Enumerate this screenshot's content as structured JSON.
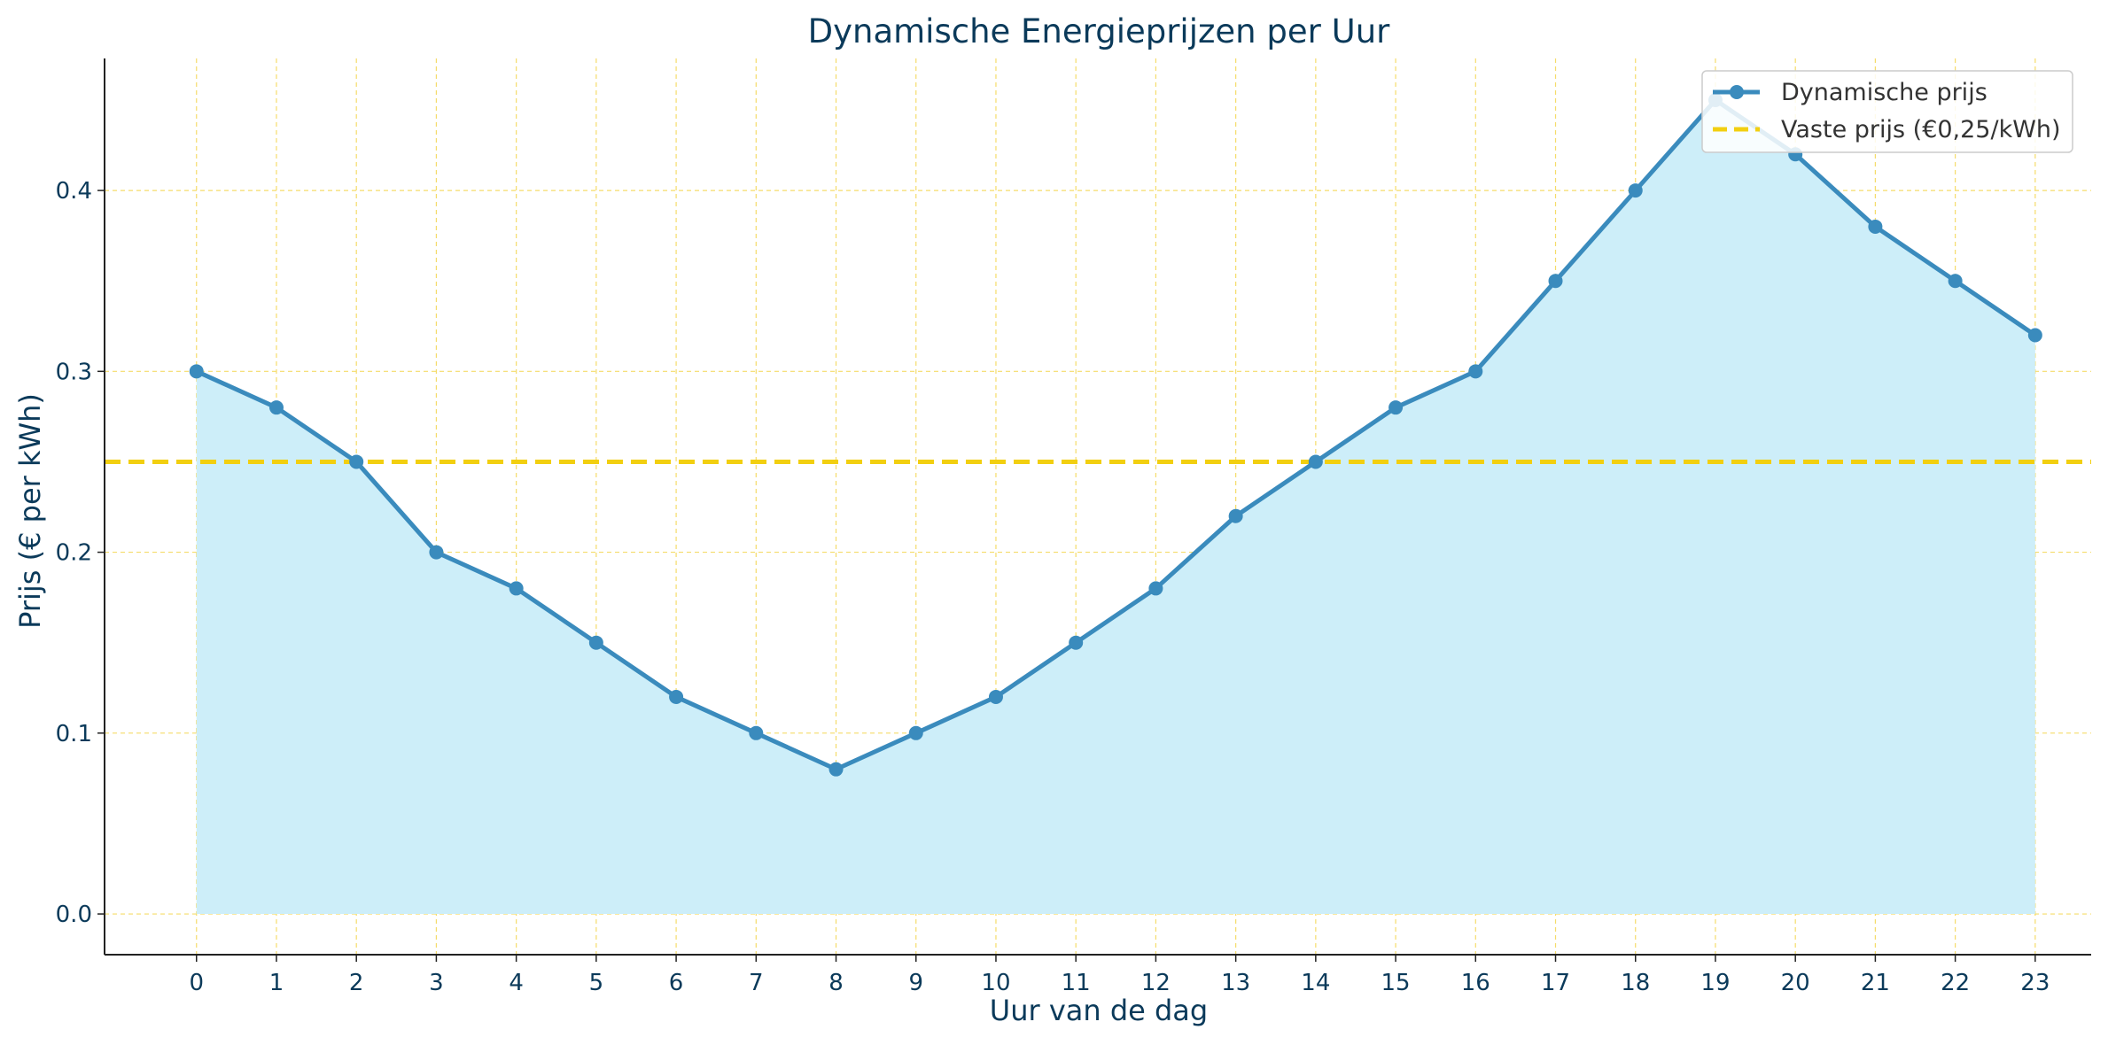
{
  "colors": {
    "line": "#3a8bbd",
    "fill": "#cdeef9",
    "fixed": "#f2cf10",
    "grid": "#f5dc6a",
    "axis": "#222222",
    "text": "#0b3a5a"
  },
  "chart_data": {
    "type": "line",
    "title": "Dynamische Energieprijzen per Uur",
    "xlabel": "Uur van de dag",
    "ylabel": "Prijs (€ per kWh)",
    "x": [
      0,
      1,
      2,
      3,
      4,
      5,
      6,
      7,
      8,
      9,
      10,
      11,
      12,
      13,
      14,
      15,
      16,
      17,
      18,
      19,
      20,
      21,
      22,
      23
    ],
    "x_ticks": [
      "0",
      "1",
      "2",
      "3",
      "4",
      "5",
      "6",
      "7",
      "8",
      "9",
      "10",
      "11",
      "12",
      "13",
      "14",
      "15",
      "16",
      "17",
      "18",
      "19",
      "20",
      "21",
      "22",
      "23"
    ],
    "y_ticks": [
      "0.0",
      "0.1",
      "0.2",
      "0.3",
      "0.4"
    ],
    "xlim": [
      -1.15,
      23.7
    ],
    "ylim": [
      -0.0225,
      0.473
    ],
    "grid": true,
    "legend_position": "top-right",
    "series": [
      {
        "name": "Dynamische prijs",
        "style": "line-markers-filled-area",
        "values": [
          0.3,
          0.28,
          0.25,
          0.2,
          0.18,
          0.15,
          0.12,
          0.1,
          0.08,
          0.1,
          0.12,
          0.15,
          0.18,
          0.22,
          0.25,
          0.28,
          0.3,
          0.35,
          0.4,
          0.45,
          0.42,
          0.38,
          0.35,
          0.32
        ]
      },
      {
        "name": "Vaste prijs (€0,25/kWh)",
        "style": "dashed-horizontal",
        "value": 0.25
      }
    ]
  }
}
